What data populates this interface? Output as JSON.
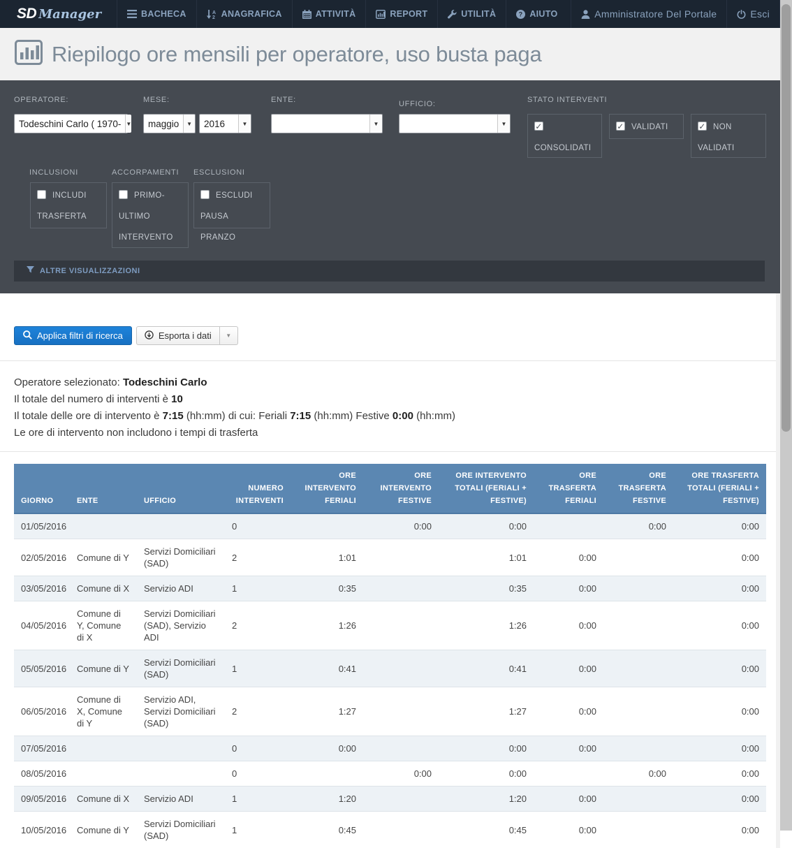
{
  "colors": {
    "navbar_bg": "#1b2531",
    "nav_text": "#8aa2bd",
    "filter_bg": "#454a51",
    "accent_blue": "#1778d0",
    "table_header_bg": "#5b87b2",
    "row_stripe": "#edf2f6"
  },
  "navbar": {
    "logo_sd": "SD",
    "logo_manager": "Manager",
    "items": [
      {
        "label": "BACHECA",
        "icon": "menu-icon"
      },
      {
        "label": "ANAGRAFICA",
        "icon": "sort-alpha-icon"
      },
      {
        "label": "ATTIVITÀ",
        "icon": "calendar-icon"
      },
      {
        "label": "REPORT",
        "icon": "bar-chart-icon"
      },
      {
        "label": "UTILITÀ",
        "icon": "wrench-icon"
      },
      {
        "label": "AIUTO",
        "icon": "question-circle-icon"
      }
    ],
    "user": "Amministratore Del Portale",
    "logout": "Esci"
  },
  "page": {
    "title": "Riepilogo ore mensili per operatore, uso busta paga"
  },
  "filters": {
    "operatore": {
      "label": "OPERATORE:",
      "value": "Todeschini Carlo ( 1970-"
    },
    "mese": {
      "label": "MESE:",
      "month": "maggio",
      "year": "2016"
    },
    "ente": {
      "label": "ENTE:",
      "value": ""
    },
    "ufficio": {
      "label": "UFFICIO:",
      "value": ""
    },
    "stato": {
      "label": "STATO INTERVENTI",
      "options": [
        {
          "label": "CONSOLIDATI",
          "checked": true
        },
        {
          "label": "VALIDATI",
          "checked": true
        },
        {
          "label": "NON VALIDATI",
          "checked": true
        }
      ]
    },
    "inclusioni": {
      "label": "INCLUSIONI",
      "option": "INCLUDI TRASFERTA",
      "checked": false
    },
    "accorpamenti": {
      "label": "ACCORPAMENTI",
      "option": "PRIMO-ULTIMO INTERVENTO",
      "checked": false
    },
    "esclusioni": {
      "label": "ESCLUSIONI",
      "option": "ESCLUDI PAUSA PRANZO",
      "checked": false
    },
    "altre_visualizzazioni": "ALTRE VISUALIZZAZIONI"
  },
  "actions": {
    "apply": "Applica filtri di ricerca",
    "export": "Esporta i dati",
    "caret": "▼"
  },
  "summary": {
    "lines": [
      [
        {
          "t": "Operatore selezionato: "
        },
        {
          "t": "Todeschini Carlo",
          "b": true
        }
      ],
      [
        {
          "t": "Il totale del numero di interventi è "
        },
        {
          "t": "10",
          "b": true
        }
      ],
      [
        {
          "t": "Il totale delle ore di intervento è "
        },
        {
          "t": "7:15",
          "b": true
        },
        {
          "t": " (hh:mm) di cui: Feriali "
        },
        {
          "t": "7:15",
          "b": true
        },
        {
          "t": " (hh:mm) Festive "
        },
        {
          "t": "0:00",
          "b": true
        },
        {
          "t": " (hh:mm)"
        }
      ],
      [
        {
          "t": "Le ore di intervento non includono i tempi di trasferta"
        }
      ]
    ]
  },
  "table": {
    "headers": [
      "GIORNO",
      "ENTE",
      "UFFICIO",
      "NUMERO INTERVENTI",
      "ORE INTERVENTO FERIALI",
      "ORE INTERVENTO FESTIVE",
      "ORE INTERVENTO TOTALI (FERIALI + FESTIVE)",
      "ORE TRASFERTA FERIALI",
      "ORE TRASFERTA FESTIVE",
      "ORE TRASFERTA TOTALI (FERIALI + FESTIVE)"
    ],
    "rows": [
      {
        "giorno": "01/05/2016",
        "ente": "",
        "ufficio": "",
        "numero": "0",
        "ore_feriali": "",
        "ore_festive": "0:00",
        "ore_totali": "0:00",
        "tras_feriali": "",
        "tras_festive": "0:00",
        "tras_totali": "0:00"
      },
      {
        "giorno": "02/05/2016",
        "ente": "Comune di Y",
        "ufficio": "Servizi Domiciliari (SAD)",
        "numero": "2",
        "ore_feriali": "1:01",
        "ore_festive": "",
        "ore_totali": "1:01",
        "tras_feriali": "0:00",
        "tras_festive": "",
        "tras_totali": "0:00"
      },
      {
        "giorno": "03/05/2016",
        "ente": "Comune di X",
        "ufficio": "Servizio ADI",
        "numero": "1",
        "ore_feriali": "0:35",
        "ore_festive": "",
        "ore_totali": "0:35",
        "tras_feriali": "0:00",
        "tras_festive": "",
        "tras_totali": "0:00"
      },
      {
        "giorno": "04/05/2016",
        "ente": "Comune di Y, Comune di X",
        "ufficio": "Servizi Domiciliari (SAD), Servizio ADI",
        "numero": "2",
        "ore_feriali": "1:26",
        "ore_festive": "",
        "ore_totali": "1:26",
        "tras_feriali": "0:00",
        "tras_festive": "",
        "tras_totali": "0:00"
      },
      {
        "giorno": "05/05/2016",
        "ente": "Comune di Y",
        "ufficio": "Servizi Domiciliari (SAD)",
        "numero": "1",
        "ore_feriali": "0:41",
        "ore_festive": "",
        "ore_totali": "0:41",
        "tras_feriali": "0:00",
        "tras_festive": "",
        "tras_totali": "0:00"
      },
      {
        "giorno": "06/05/2016",
        "ente": "Comune di X, Comune di Y",
        "ufficio": "Servizio ADI, Servizi Domiciliari (SAD)",
        "numero": "2",
        "ore_feriali": "1:27",
        "ore_festive": "",
        "ore_totali": "1:27",
        "tras_feriali": "0:00",
        "tras_festive": "",
        "tras_totali": "0:00"
      },
      {
        "giorno": "07/05/2016",
        "ente": "",
        "ufficio": "",
        "numero": "0",
        "ore_feriali": "0:00",
        "ore_festive": "",
        "ore_totali": "0:00",
        "tras_feriali": "0:00",
        "tras_festive": "",
        "tras_totali": "0:00"
      },
      {
        "giorno": "08/05/2016",
        "ente": "",
        "ufficio": "",
        "numero": "0",
        "ore_feriali": "",
        "ore_festive": "0:00",
        "ore_totali": "0:00",
        "tras_feriali": "",
        "tras_festive": "0:00",
        "tras_totali": "0:00"
      },
      {
        "giorno": "09/05/2016",
        "ente": "Comune di X",
        "ufficio": "Servizio ADI",
        "numero": "1",
        "ore_feriali": "1:20",
        "ore_festive": "",
        "ore_totali": "1:20",
        "tras_feriali": "0:00",
        "tras_festive": "",
        "tras_totali": "0:00"
      },
      {
        "giorno": "10/05/2016",
        "ente": "Comune di Y",
        "ufficio": "Servizi Domiciliari (SAD)",
        "numero": "1",
        "ore_feriali": "0:45",
        "ore_festive": "",
        "ore_totali": "0:45",
        "tras_feriali": "0:00",
        "tras_festive": "",
        "tras_totali": "0:00"
      }
    ]
  }
}
